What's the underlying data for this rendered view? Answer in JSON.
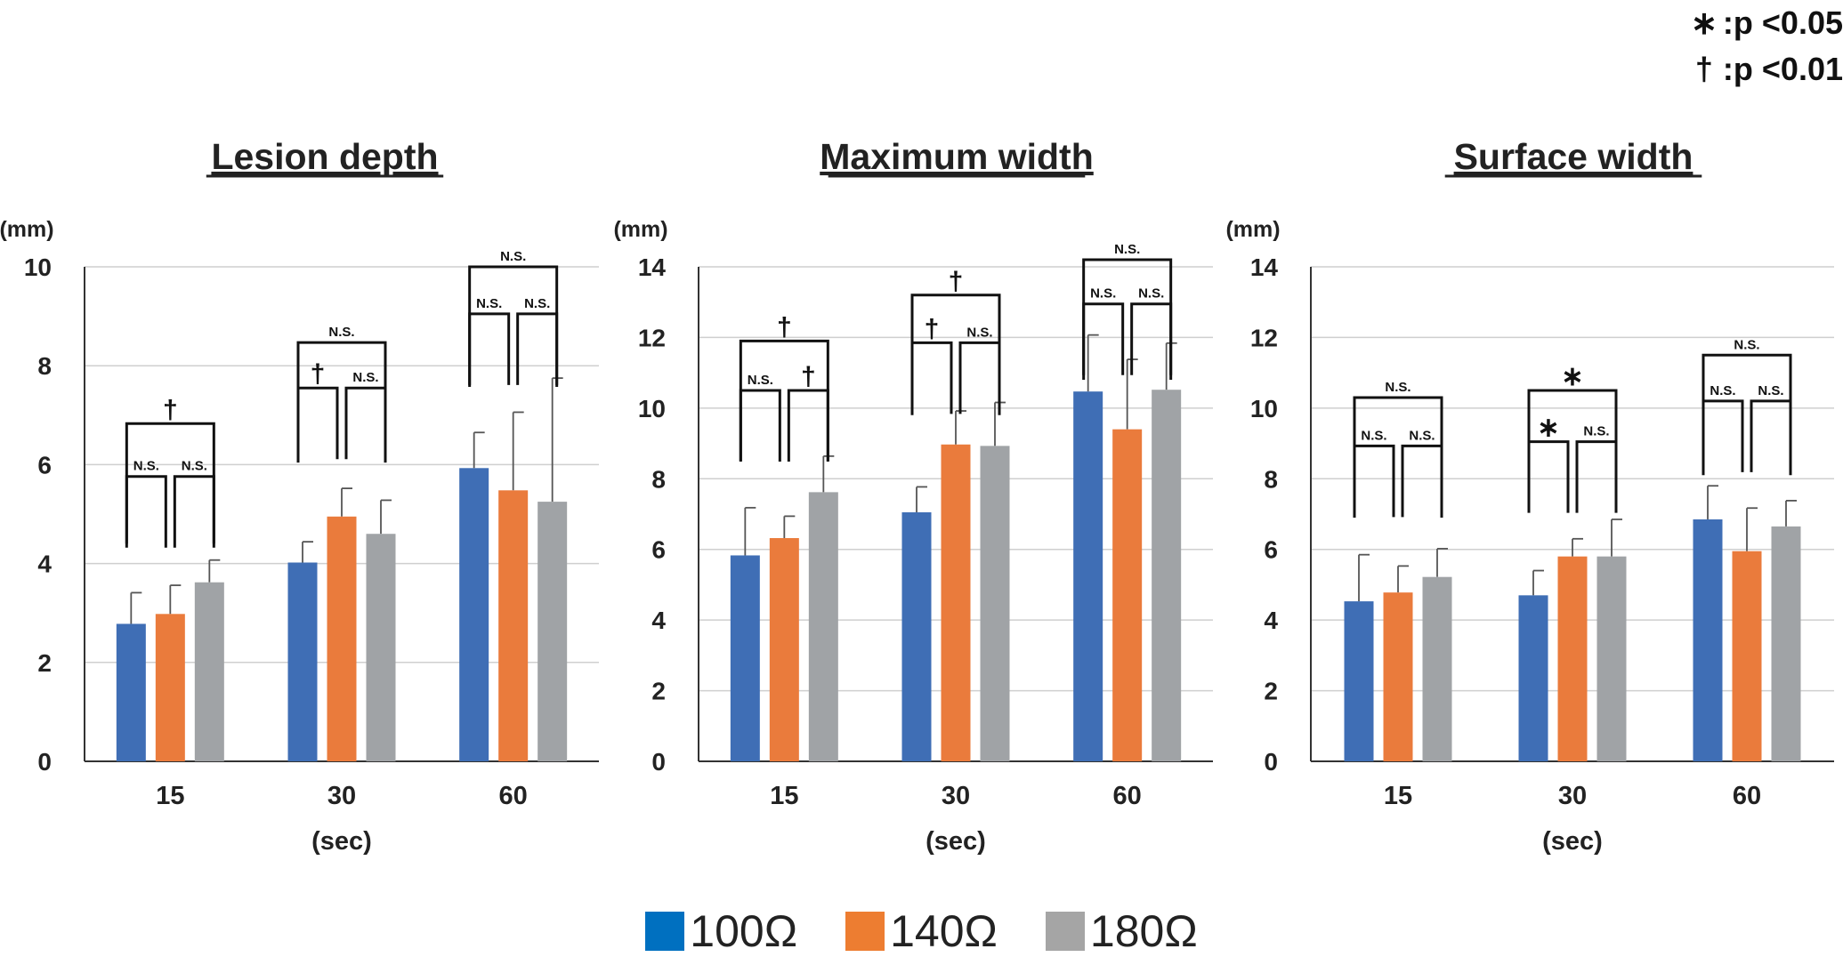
{
  "significance_legend": [
    {
      "symbol": "∗",
      "text": ":p <0.05"
    },
    {
      "symbol": "†",
      "text": ":p <0.01"
    }
  ],
  "series_legend": [
    {
      "label": "100Ω",
      "color": "#0070c0"
    },
    {
      "label": "140Ω",
      "color": "#ed7d31"
    },
    {
      "label": "180Ω",
      "color": "#a5a5a5"
    }
  ],
  "chart_data": [
    {
      "type": "bar",
      "title": "Lesion depth",
      "xlabel": "(sec)",
      "ylabel": "(mm)",
      "ylim": [
        0,
        10
      ],
      "yticks": [
        0,
        2,
        4,
        6,
        8,
        10
      ],
      "grid": true,
      "categories": [
        "15",
        "30",
        "60"
      ],
      "series": [
        {
          "name": "100Ω",
          "color": "#3f6eb5",
          "values": [
            2.78,
            4.02,
            5.93
          ],
          "error": [
            0.63,
            0.42,
            0.72
          ]
        },
        {
          "name": "140Ω",
          "color": "#ea7b3c",
          "values": [
            2.98,
            4.95,
            5.48
          ],
          "error": [
            0.58,
            0.57,
            1.58
          ]
        },
        {
          "name": "180Ω",
          "color": "#a0a3a6",
          "values": [
            3.62,
            4.6,
            5.25
          ],
          "error": [
            0.45,
            0.68,
            2.5
          ]
        }
      ],
      "annotations": [
        {
          "category": "15",
          "pair": [
            0,
            2
          ],
          "label": "†",
          "level": 6.83
        },
        {
          "category": "15",
          "pair": [
            0,
            1
          ],
          "label": "N.S.",
          "level": 5.76
        },
        {
          "category": "15",
          "pair": [
            1,
            2
          ],
          "label": "N.S.",
          "level": 5.76
        },
        {
          "category": "30",
          "pair": [
            0,
            2
          ],
          "label": "N.S.",
          "level": 8.47
        },
        {
          "category": "30",
          "pair": [
            0,
            1
          ],
          "label": "†",
          "level": 7.55
        },
        {
          "category": "30",
          "pair": [
            1,
            2
          ],
          "label": "N.S.",
          "level": 7.55
        },
        {
          "category": "60",
          "pair": [
            0,
            2
          ],
          "label": "N.S.",
          "level": 10.0
        },
        {
          "category": "60",
          "pair": [
            0,
            1
          ],
          "label": "N.S.",
          "level": 9.05
        },
        {
          "category": "60",
          "pair": [
            1,
            2
          ],
          "label": "N.S.",
          "level": 9.05
        }
      ]
    },
    {
      "type": "bar",
      "title": "Maximum width",
      "xlabel": "(sec)",
      "ylabel": "(mm)",
      "ylim": [
        0,
        14
      ],
      "yticks": [
        0,
        2,
        4,
        6,
        8,
        10,
        12,
        14
      ],
      "grid": true,
      "categories": [
        "15",
        "30",
        "60"
      ],
      "series": [
        {
          "name": "100Ω",
          "color": "#3f6eb5",
          "values": [
            5.83,
            7.05,
            10.47
          ],
          "error": [
            1.35,
            0.72,
            1.6
          ]
        },
        {
          "name": "140Ω",
          "color": "#ea7b3c",
          "values": [
            6.32,
            8.97,
            9.4
          ],
          "error": [
            0.62,
            0.95,
            1.98
          ]
        },
        {
          "name": "180Ω",
          "color": "#a0a3a6",
          "values": [
            7.62,
            8.93,
            10.52
          ],
          "error": [
            1.02,
            1.23,
            1.32
          ]
        }
      ],
      "annotations": [
        {
          "category": "15",
          "pair": [
            0,
            2
          ],
          "label": "†",
          "level": 11.9
        },
        {
          "category": "15",
          "pair": [
            0,
            1
          ],
          "label": "N.S.",
          "level": 10.5
        },
        {
          "category": "15",
          "pair": [
            1,
            2
          ],
          "label": "†",
          "level": 10.5
        },
        {
          "category": "30",
          "pair": [
            0,
            2
          ],
          "label": "†",
          "level": 13.2
        },
        {
          "category": "30",
          "pair": [
            0,
            1
          ],
          "label": "†",
          "level": 11.85
        },
        {
          "category": "30",
          "pair": [
            1,
            2
          ],
          "label": "N.S.",
          "level": 11.85
        },
        {
          "category": "60",
          "pair": [
            0,
            2
          ],
          "label": "N.S.",
          "level": 14.2
        },
        {
          "category": "60",
          "pair": [
            0,
            1
          ],
          "label": "N.S.",
          "level": 12.95
        },
        {
          "category": "60",
          "pair": [
            1,
            2
          ],
          "label": "N.S.",
          "level": 12.95
        }
      ]
    },
    {
      "type": "bar",
      "title": "Surface width",
      "xlabel": "(sec)",
      "ylabel": "(mm)",
      "ylim": [
        0,
        14
      ],
      "yticks": [
        0,
        2,
        4,
        6,
        8,
        10,
        12,
        14
      ],
      "grid": true,
      "categories": [
        "15",
        "30",
        "60"
      ],
      "series": [
        {
          "name": "100Ω",
          "color": "#3f6eb5",
          "values": [
            4.53,
            4.7,
            6.85
          ],
          "error": [
            1.32,
            0.7,
            0.95
          ]
        },
        {
          "name": "140Ω",
          "color": "#ea7b3c",
          "values": [
            4.78,
            5.8,
            5.95
          ],
          "error": [
            0.75,
            0.5,
            1.22
          ]
        },
        {
          "name": "180Ω",
          "color": "#a0a3a6",
          "values": [
            5.22,
            5.8,
            6.65
          ],
          "error": [
            0.8,
            1.05,
            0.73
          ]
        }
      ],
      "annotations": [
        {
          "category": "15",
          "pair": [
            0,
            2
          ],
          "label": "N.S.",
          "level": 10.3
        },
        {
          "category": "15",
          "pair": [
            0,
            1
          ],
          "label": "N.S.",
          "level": 8.93
        },
        {
          "category": "15",
          "pair": [
            1,
            2
          ],
          "label": "N.S.",
          "level": 8.93
        },
        {
          "category": "30",
          "pair": [
            0,
            2
          ],
          "label": "∗",
          "level": 10.5
        },
        {
          "category": "30",
          "pair": [
            0,
            1
          ],
          "label": "∗",
          "level": 9.05
        },
        {
          "category": "30",
          "pair": [
            1,
            2
          ],
          "label": "N.S.",
          "level": 9.05
        },
        {
          "category": "60",
          "pair": [
            0,
            2
          ],
          "label": "N.S.",
          "level": 11.5
        },
        {
          "category": "60",
          "pair": [
            0,
            1
          ],
          "label": "N.S.",
          "level": 10.2
        },
        {
          "category": "60",
          "pair": [
            1,
            2
          ],
          "label": "N.S.",
          "level": 10.2
        }
      ]
    }
  ]
}
